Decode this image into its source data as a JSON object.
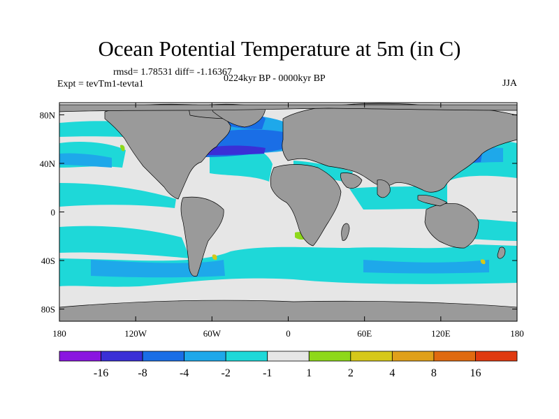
{
  "title": "Ocean Potential Temperature at 5m (in C)",
  "stats": "rmsd= 1.78531 diff= -1.16367",
  "experiment": "Expt = tevTm1-tevta1",
  "period": "0224kyr BP - 0000kyr BP",
  "season": "JJA",
  "axes": {
    "lat_ticks": [
      {
        "lat": 80,
        "label": "80N"
      },
      {
        "lat": 40,
        "label": "40N"
      },
      {
        "lat": 0,
        "label": "0"
      },
      {
        "lat": -40,
        "label": "40S"
      },
      {
        "lat": -80,
        "label": "80S"
      }
    ],
    "lon_ticks": [
      {
        "lon": -180,
        "label": "180"
      },
      {
        "lon": -120,
        "label": "120W"
      },
      {
        "lon": -60,
        "label": "60W"
      },
      {
        "lon": 0,
        "label": "0"
      },
      {
        "lon": 60,
        "label": "60E"
      },
      {
        "lon": 120,
        "label": "120E"
      },
      {
        "lon": 180,
        "label": "180"
      }
    ]
  },
  "colorbar": {
    "colors": [
      "#8a16e0",
      "#3a2fd6",
      "#1a6ee6",
      "#1ea8ea",
      "#1ed8d8",
      "#e6e6e6",
      "#8ed81a",
      "#d6c81a",
      "#e0a01a",
      "#e06a10",
      "#e03a10"
    ],
    "labels": [
      "-16",
      "-8",
      "-4",
      "-2",
      "-1",
      "1",
      "2",
      "4",
      "8",
      "16"
    ]
  },
  "colors": {
    "land": "#9a9a9a",
    "neutral": "#e6e6e6",
    "light_cyan": "#1ed8d8",
    "sky": "#1ea8ea",
    "blue": "#1a6ee6",
    "dark_blue": "#3a2fd6",
    "green": "#8ed81a",
    "yellow": "#d6c81a"
  }
}
